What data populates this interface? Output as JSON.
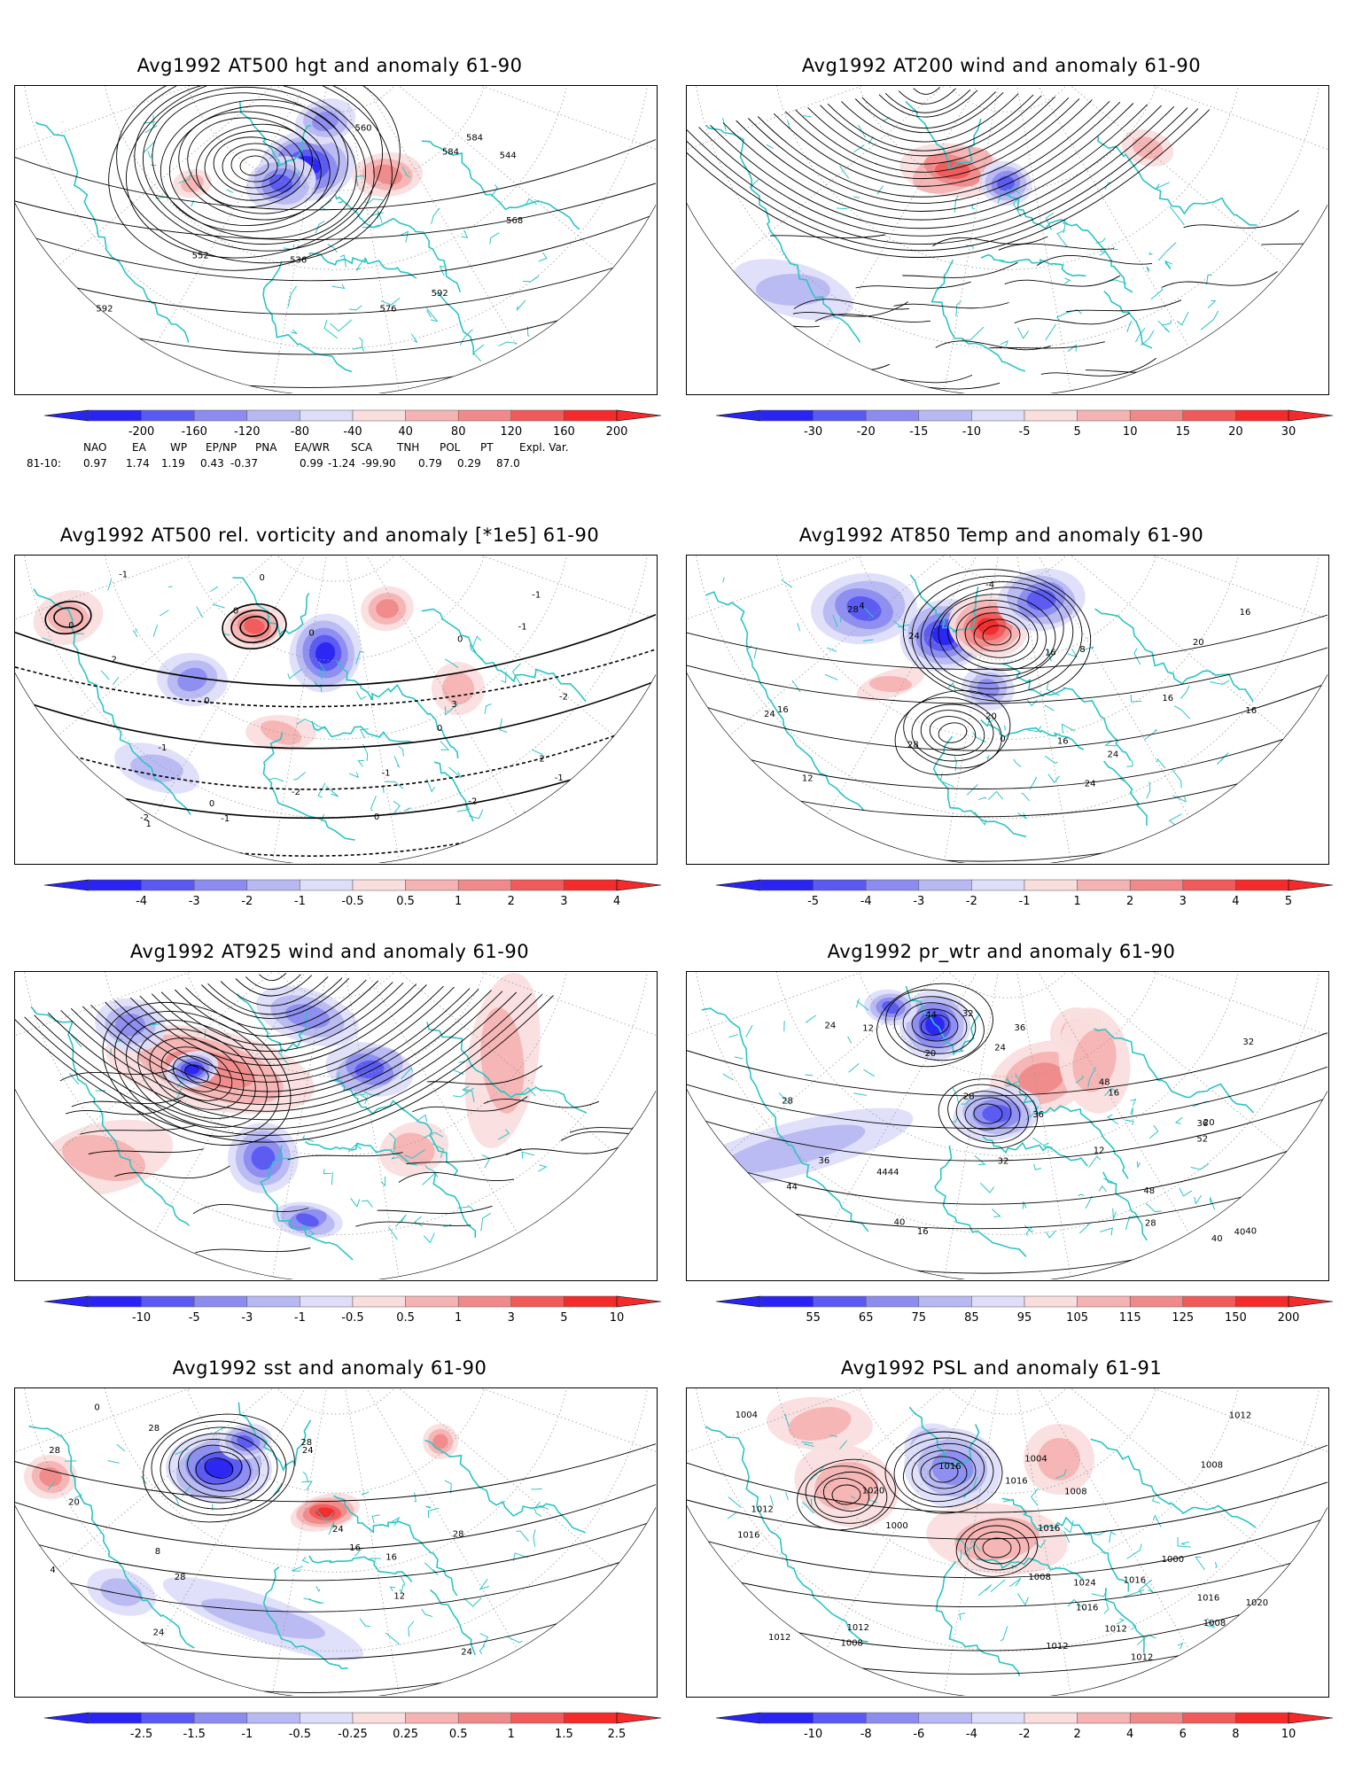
{
  "panels": [
    {
      "id": "p1",
      "title": "Avg1992 AT500 hgt and anomaly 61-90",
      "colorbar": [
        "-200",
        "-160",
        "-120",
        "-80",
        "-40",
        "40",
        "80",
        "120",
        "160",
        "200"
      ],
      "contour_labels": [
        "536",
        "544",
        "552",
        "560",
        "568",
        "576",
        "584",
        "584",
        "592",
        "592"
      ],
      "style": "height"
    },
    {
      "id": "p2",
      "title": "Avg1992 AT200 wind and anomaly 61-90",
      "colorbar": [
        "-30",
        "-20",
        "-15",
        "-10",
        "-5",
        "5",
        "10",
        "15",
        "20",
        "30"
      ],
      "contour_labels": [],
      "style": "wind"
    },
    {
      "id": "p3",
      "title": "Avg1992 AT500 rel. vorticity and anomaly [*1e5] 61-90",
      "colorbar": [
        "-4",
        "-3",
        "-2",
        "-1",
        "-0.5",
        "0.5",
        "1",
        "2",
        "3",
        "4"
      ],
      "contour_labels": [
        "0",
        "0",
        "0",
        "0",
        "0",
        "0",
        "0",
        "-1",
        "-1",
        "-1",
        "-1",
        "-2",
        "-2",
        "-2",
        "-1",
        "2",
        "3",
        "-2",
        "2",
        "-1",
        "1",
        "-1",
        "0",
        "0"
      ],
      "style": "vorticity"
    },
    {
      "id": "p4",
      "title": "Avg1992 AT850 Temp and anomaly 61-90",
      "colorbar": [
        "-5",
        "-4",
        "-3",
        "-2",
        "-1",
        "1",
        "2",
        "3",
        "4",
        "5"
      ],
      "contour_labels": [
        "-4",
        "0",
        "4",
        "8",
        "12",
        "16",
        "16",
        "16",
        "16",
        "20",
        "24",
        "24",
        "24",
        "28",
        "28",
        "16",
        "16",
        "20",
        "24"
      ],
      "style": "temp"
    },
    {
      "id": "p5",
      "title": "Avg1992 AT925 wind and anomaly 61-90",
      "colorbar": [
        "-10",
        "-5",
        "-3",
        "-1",
        "-0.5",
        "0.5",
        "1",
        "3",
        "5",
        "10"
      ],
      "contour_labels": [],
      "style": "wind"
    },
    {
      "id": "p6",
      "title": "Avg1992 pr_wtr and anomaly 61-90",
      "colorbar": [
        "55",
        "65",
        "75",
        "85",
        "95",
        "105",
        "115",
        "125",
        "150",
        "200"
      ],
      "contour_labels": [
        "32",
        "40",
        "36",
        "44",
        "48",
        "40",
        "36",
        "28",
        "32",
        "20",
        "24",
        "12",
        "16",
        "24",
        "28",
        "36",
        "40",
        "44",
        "48",
        "52",
        "4444",
        "40",
        "36",
        "32",
        "28",
        "12",
        "16",
        "20"
      ],
      "style": "prwtr"
    },
    {
      "id": "p7",
      "title": "Avg1992 sst and anomaly 61-90",
      "colorbar": [
        "-2.5",
        "-1.5",
        "-1",
        "-0.5",
        "-0.25",
        "0.25",
        "0.5",
        "1",
        "1.5",
        "2.5"
      ],
      "contour_labels": [
        "24",
        "28",
        "28",
        "28",
        "28",
        "28",
        "24",
        "24",
        "8",
        "12",
        "16",
        "20",
        "4",
        "0",
        "16",
        "24"
      ],
      "style": "sst"
    },
    {
      "id": "p8",
      "title": "Avg1992 PSL and anomaly 61-91",
      "colorbar": [
        "-10",
        "-8",
        "-6",
        "-4",
        "-2",
        "2",
        "4",
        "6",
        "8",
        "10"
      ],
      "contour_labels": [
        "1016",
        "1016",
        "1008",
        "1012",
        "1008",
        "1012",
        "1016",
        "1020",
        "1012",
        "1008",
        "1004",
        "1000",
        "1008",
        "1016",
        "1024",
        "1020",
        "1016",
        "1012",
        "1016",
        "1008",
        "1012",
        "1016",
        "1000",
        "1004",
        "1012",
        "1012"
      ],
      "style": "psl"
    }
  ],
  "stats": {
    "headers": [
      "NAO",
      "EA",
      "WP",
      "EP/NP",
      "PNA",
      "EA/WR",
      "SCA",
      "TNH",
      "POL",
      "PT",
      "Expl. Var."
    ],
    "row_label": "81-10:",
    "values": [
      "0.97",
      "1.74",
      "1.19",
      "0.43",
      "-0.37",
      "0.99",
      "-1.24",
      "-99.90",
      "0.79",
      "0.29",
      "87.0"
    ]
  },
  "colors": {
    "coast": "#2ec4c4",
    "contour": "#000000",
    "grid": "#9a9a9a",
    "neg": [
      "#2a24f2",
      "#5a5af2",
      "#8c8cf0",
      "#b8b8f2",
      "#dedefa"
    ],
    "pos": [
      "#fadede",
      "#f5b3b3",
      "#f08a8a",
      "#f05a5a",
      "#f52a2a"
    ]
  }
}
